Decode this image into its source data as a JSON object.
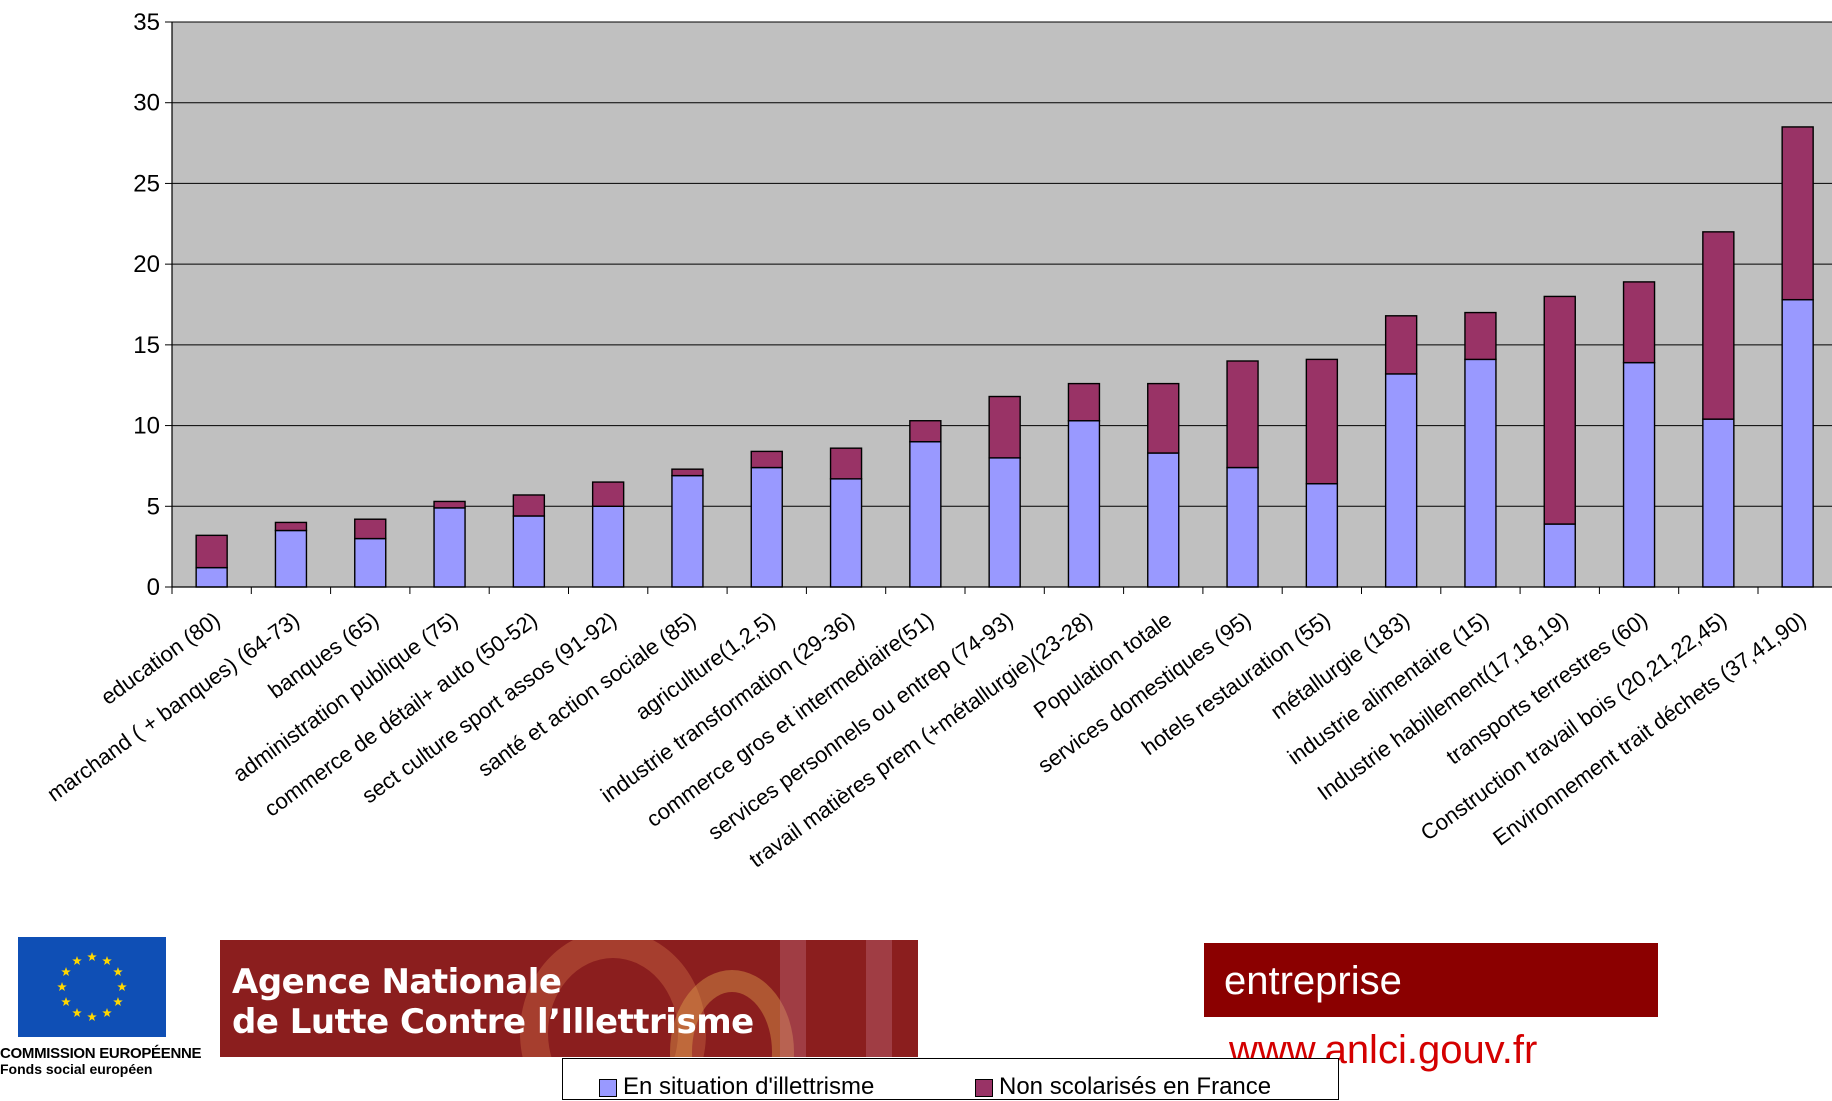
{
  "chart_data": {
    "type": "bar",
    "stacked": true,
    "categories": [
      "education (80)",
      "marchand ( + banques) (64-73)",
      "banques (65)",
      "administration publique (75)",
      "commerce de détail+ auto (50-52)",
      "sect culture sport assos (91-92)",
      "santé et action sociale (85)",
      "agriculture(1,2,5)",
      "industrie transformation (29-36)",
      "commerce gros et intermediaire(51)",
      "services  personnels ou entrep (74-93)",
      "travail matières  prem (+métallurgie)(23-28)",
      "Population totale",
      "services domestiques (95)",
      "hotels restauration (55)",
      "métallurgie (183)",
      "industrie alimentaire (15)",
      "Industrie habillement(17,18,19)",
      "transports terrestres (60)",
      "Construction travail bois (20,21,22,45)",
      "Environnement trait déchets (37,41,90)"
    ],
    "series": [
      {
        "name": "En situation d'illettrisme",
        "color": "#9999ff",
        "values": [
          1.2,
          3.5,
          3.0,
          4.9,
          4.4,
          5.0,
          6.9,
          7.4,
          6.7,
          9.0,
          8.0,
          10.3,
          8.3,
          7.4,
          6.4,
          13.2,
          14.1,
          3.9,
          13.9,
          10.4,
          17.8
        ]
      },
      {
        "name": "Non scolarisés en France",
        "color": "#993366",
        "values": [
          2.0,
          0.5,
          1.2,
          0.4,
          1.3,
          1.5,
          0.4,
          1.0,
          1.9,
          1.3,
          3.8,
          2.3,
          4.3,
          6.6,
          7.7,
          3.6,
          2.9,
          14.1,
          5.0,
          11.6,
          10.7
        ]
      }
    ],
    "ylim": [
      0,
      35
    ],
    "yticks": [
      0,
      5,
      10,
      15,
      20,
      25,
      30,
      35
    ],
    "grid": true,
    "legend_position": "bottom",
    "plot_background": "#c0c0c0"
  },
  "branding": {
    "eu_line1": "COMMISSION EUROPÉENNE",
    "eu_line2": "Fonds social européen",
    "anlci_line1": "Agence Nationale",
    "anlci_line2": "de Lutte Contre l’Illettrisme",
    "entreprise": "entreprise",
    "website": "www.anlci.gouv.fr"
  }
}
